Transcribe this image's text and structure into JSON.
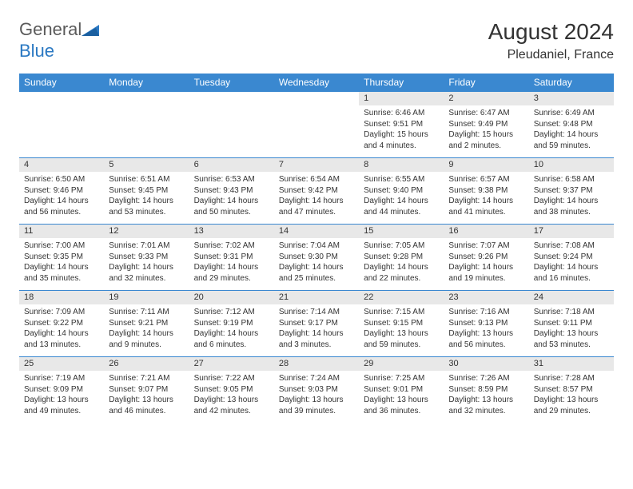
{
  "logo": {
    "general": "General",
    "blue": "Blue"
  },
  "title": "August 2024",
  "location": "Pleudaniel, France",
  "colors": {
    "header_bg": "#3a88d0",
    "header_fg": "#ffffff",
    "daynum_bg": "#e8e8e8",
    "border": "#3a88d0"
  },
  "day_names": [
    "Sunday",
    "Monday",
    "Tuesday",
    "Wednesday",
    "Thursday",
    "Friday",
    "Saturday"
  ],
  "weeks": [
    [
      {
        "empty": true
      },
      {
        "empty": true
      },
      {
        "empty": true
      },
      {
        "empty": true
      },
      {
        "num": "1",
        "sunrise": "Sunrise: 6:46 AM",
        "sunset": "Sunset: 9:51 PM",
        "daylight": "Daylight: 15 hours and 4 minutes."
      },
      {
        "num": "2",
        "sunrise": "Sunrise: 6:47 AM",
        "sunset": "Sunset: 9:49 PM",
        "daylight": "Daylight: 15 hours and 2 minutes."
      },
      {
        "num": "3",
        "sunrise": "Sunrise: 6:49 AM",
        "sunset": "Sunset: 9:48 PM",
        "daylight": "Daylight: 14 hours and 59 minutes."
      }
    ],
    [
      {
        "num": "4",
        "sunrise": "Sunrise: 6:50 AM",
        "sunset": "Sunset: 9:46 PM",
        "daylight": "Daylight: 14 hours and 56 minutes."
      },
      {
        "num": "5",
        "sunrise": "Sunrise: 6:51 AM",
        "sunset": "Sunset: 9:45 PM",
        "daylight": "Daylight: 14 hours and 53 minutes."
      },
      {
        "num": "6",
        "sunrise": "Sunrise: 6:53 AM",
        "sunset": "Sunset: 9:43 PM",
        "daylight": "Daylight: 14 hours and 50 minutes."
      },
      {
        "num": "7",
        "sunrise": "Sunrise: 6:54 AM",
        "sunset": "Sunset: 9:42 PM",
        "daylight": "Daylight: 14 hours and 47 minutes."
      },
      {
        "num": "8",
        "sunrise": "Sunrise: 6:55 AM",
        "sunset": "Sunset: 9:40 PM",
        "daylight": "Daylight: 14 hours and 44 minutes."
      },
      {
        "num": "9",
        "sunrise": "Sunrise: 6:57 AM",
        "sunset": "Sunset: 9:38 PM",
        "daylight": "Daylight: 14 hours and 41 minutes."
      },
      {
        "num": "10",
        "sunrise": "Sunrise: 6:58 AM",
        "sunset": "Sunset: 9:37 PM",
        "daylight": "Daylight: 14 hours and 38 minutes."
      }
    ],
    [
      {
        "num": "11",
        "sunrise": "Sunrise: 7:00 AM",
        "sunset": "Sunset: 9:35 PM",
        "daylight": "Daylight: 14 hours and 35 minutes."
      },
      {
        "num": "12",
        "sunrise": "Sunrise: 7:01 AM",
        "sunset": "Sunset: 9:33 PM",
        "daylight": "Daylight: 14 hours and 32 minutes."
      },
      {
        "num": "13",
        "sunrise": "Sunrise: 7:02 AM",
        "sunset": "Sunset: 9:31 PM",
        "daylight": "Daylight: 14 hours and 29 minutes."
      },
      {
        "num": "14",
        "sunrise": "Sunrise: 7:04 AM",
        "sunset": "Sunset: 9:30 PM",
        "daylight": "Daylight: 14 hours and 25 minutes."
      },
      {
        "num": "15",
        "sunrise": "Sunrise: 7:05 AM",
        "sunset": "Sunset: 9:28 PM",
        "daylight": "Daylight: 14 hours and 22 minutes."
      },
      {
        "num": "16",
        "sunrise": "Sunrise: 7:07 AM",
        "sunset": "Sunset: 9:26 PM",
        "daylight": "Daylight: 14 hours and 19 minutes."
      },
      {
        "num": "17",
        "sunrise": "Sunrise: 7:08 AM",
        "sunset": "Sunset: 9:24 PM",
        "daylight": "Daylight: 14 hours and 16 minutes."
      }
    ],
    [
      {
        "num": "18",
        "sunrise": "Sunrise: 7:09 AM",
        "sunset": "Sunset: 9:22 PM",
        "daylight": "Daylight: 14 hours and 13 minutes."
      },
      {
        "num": "19",
        "sunrise": "Sunrise: 7:11 AM",
        "sunset": "Sunset: 9:21 PM",
        "daylight": "Daylight: 14 hours and 9 minutes."
      },
      {
        "num": "20",
        "sunrise": "Sunrise: 7:12 AM",
        "sunset": "Sunset: 9:19 PM",
        "daylight": "Daylight: 14 hours and 6 minutes."
      },
      {
        "num": "21",
        "sunrise": "Sunrise: 7:14 AM",
        "sunset": "Sunset: 9:17 PM",
        "daylight": "Daylight: 14 hours and 3 minutes."
      },
      {
        "num": "22",
        "sunrise": "Sunrise: 7:15 AM",
        "sunset": "Sunset: 9:15 PM",
        "daylight": "Daylight: 13 hours and 59 minutes."
      },
      {
        "num": "23",
        "sunrise": "Sunrise: 7:16 AM",
        "sunset": "Sunset: 9:13 PM",
        "daylight": "Daylight: 13 hours and 56 minutes."
      },
      {
        "num": "24",
        "sunrise": "Sunrise: 7:18 AM",
        "sunset": "Sunset: 9:11 PM",
        "daylight": "Daylight: 13 hours and 53 minutes."
      }
    ],
    [
      {
        "num": "25",
        "sunrise": "Sunrise: 7:19 AM",
        "sunset": "Sunset: 9:09 PM",
        "daylight": "Daylight: 13 hours and 49 minutes."
      },
      {
        "num": "26",
        "sunrise": "Sunrise: 7:21 AM",
        "sunset": "Sunset: 9:07 PM",
        "daylight": "Daylight: 13 hours and 46 minutes."
      },
      {
        "num": "27",
        "sunrise": "Sunrise: 7:22 AM",
        "sunset": "Sunset: 9:05 PM",
        "daylight": "Daylight: 13 hours and 42 minutes."
      },
      {
        "num": "28",
        "sunrise": "Sunrise: 7:24 AM",
        "sunset": "Sunset: 9:03 PM",
        "daylight": "Daylight: 13 hours and 39 minutes."
      },
      {
        "num": "29",
        "sunrise": "Sunrise: 7:25 AM",
        "sunset": "Sunset: 9:01 PM",
        "daylight": "Daylight: 13 hours and 36 minutes."
      },
      {
        "num": "30",
        "sunrise": "Sunrise: 7:26 AM",
        "sunset": "Sunset: 8:59 PM",
        "daylight": "Daylight: 13 hours and 32 minutes."
      },
      {
        "num": "31",
        "sunrise": "Sunrise: 7:28 AM",
        "sunset": "Sunset: 8:57 PM",
        "daylight": "Daylight: 13 hours and 29 minutes."
      }
    ]
  ]
}
